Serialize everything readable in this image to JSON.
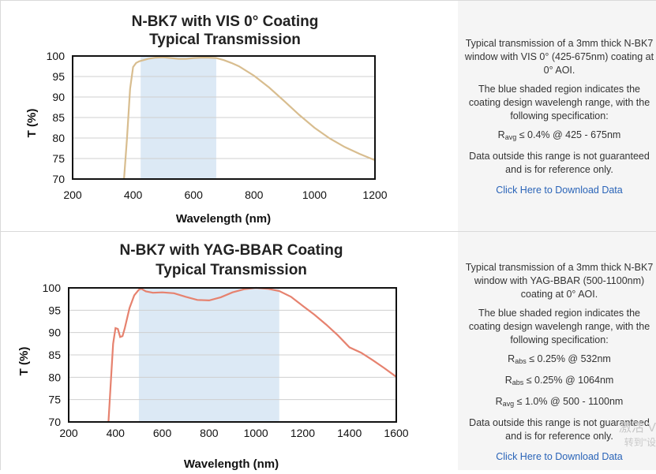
{
  "panels": [
    {
      "chart_data": {
        "type": "line",
        "title_line1": "N-BK7 with VIS 0° Coating",
        "title_line2": "Typical Transmission",
        "xlabel": "Wavelength (nm)",
        "ylabel": "T (%)",
        "xlim": [
          200,
          1200
        ],
        "ylim": [
          70,
          100
        ],
        "xticks": [
          200,
          400,
          600,
          800,
          1000,
          1200
        ],
        "yticks": [
          70,
          75,
          80,
          85,
          90,
          95,
          100
        ],
        "grid": "horizontal",
        "shaded_range": [
          425,
          675
        ],
        "shaded_color": "#dce9f5",
        "line_color": "#d8bd8f",
        "series": [
          {
            "x": [
              370,
              380,
              390,
              400,
              410,
              420,
              430,
              450,
              475,
              500,
              525,
              550,
              575,
              600,
              625,
              650,
              675,
              700,
              725,
              750,
              800,
              850,
              900,
              950,
              1000,
              1050,
              1100,
              1150,
              1200
            ],
            "y": [
              70,
              80,
              92,
              97.3,
              98.3,
              98.7,
              98.9,
              99.3,
              99.6,
              99.7,
              99.5,
              99.3,
              99.3,
              99.5,
              99.6,
              99.6,
              99.5,
              99.0,
              98.3,
              97.5,
              95.2,
              92.3,
              89.0,
              85.6,
              82.5,
              79.9,
              77.8,
              76.1,
              74.6
            ]
          }
        ]
      },
      "side": {
        "description": "Typical transmission of a 3mm thick N-BK7 window with VIS 0° (425-675nm) coating at 0° AOI.",
        "shaded_note": "The blue shaded region indicates the coating design wavelengh range, with the following specification:",
        "specs": [
          {
            "symbol": "R",
            "sub": "avg",
            "text": "≤ 0.4% @ 425 - 675nm"
          }
        ],
        "disclaimer": "Data outside this range is not guaranteed and is for reference only.",
        "link": "Click Here to Download Data"
      }
    },
    {
      "chart_data": {
        "type": "line",
        "title_line1": "N-BK7 with YAG-BBAR Coating",
        "title_line2": "Typical Transmission",
        "xlabel": "Wavelength (nm)",
        "ylabel": "T (%)",
        "xlim": [
          200,
          1600
        ],
        "ylim": [
          70,
          100
        ],
        "xticks": [
          200,
          400,
          600,
          800,
          1000,
          1200,
          1400,
          1600
        ],
        "yticks": [
          70,
          75,
          80,
          85,
          90,
          95,
          100
        ],
        "grid": "horizontal",
        "shaded_range": [
          500,
          1100
        ],
        "shaded_color": "#dce9f5",
        "line_color": "#e6826f",
        "series": [
          {
            "x": [
              370,
              380,
              390,
              400,
              410,
              420,
              430,
              440,
              460,
              480,
              500,
              510,
              530,
              560,
              600,
              650,
              700,
              750,
              800,
              850,
              900,
              950,
              1000,
              1050,
              1100,
              1150,
              1200,
              1250,
              1300,
              1350,
              1400,
              1450,
              1500,
              1550,
              1600
            ],
            "y": [
              70,
              79,
              87.5,
              91,
              90.8,
              89,
              89.2,
              91,
              95.5,
              98.3,
              99.6,
              99.8,
              99.2,
              98.9,
              99.0,
              98.8,
              98.0,
              97.3,
              97.2,
              97.9,
              99.0,
              99.7,
              100,
              99.8,
              99.3,
              98.0,
              96.0,
              94.0,
              91.8,
              89.4,
              86.7,
              85.5,
              83.8,
              82.0,
              80.1
            ]
          }
        ]
      },
      "side": {
        "description": "Typical transmission of a 3mm thick N-BK7 window with YAG-BBAR (500-1100nm) coating at 0° AOI.",
        "shaded_note": "The blue shaded region indicates the coating design wavelengh range, with the following specification:",
        "specs": [
          {
            "symbol": "R",
            "sub": "abs",
            "text": "≤ 0.25% @ 532nm"
          },
          {
            "symbol": "R",
            "sub": "abs",
            "text": "≤ 0.25% @ 1064nm"
          },
          {
            "symbol": "R",
            "sub": "avg",
            "text": "≤ 1.0% @ 500 - 1100nm"
          }
        ],
        "disclaimer": "Data outside this range is not guaranteed and is for reference only.",
        "link": "Click Here to Download Data"
      }
    }
  ],
  "watermark": {
    "line1": "激活 V",
    "line2": "转到\"设"
  }
}
